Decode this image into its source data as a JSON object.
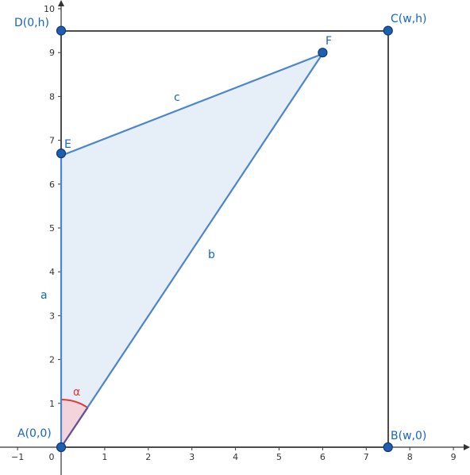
{
  "colors": {
    "axis": "#333333",
    "rect_edge": "#4d4d4d",
    "triangle_edge": "#4a86c8",
    "triangle_fill": "#dde9f6",
    "label": "#1565c0",
    "point_fill": "#1e5fb4",
    "point_stroke": "#103a6e",
    "angle": "#e53935",
    "angle_fill": "#f3d4dc"
  },
  "axes": {
    "x_range": [
      -1,
      9
    ],
    "y_range": [
      0,
      10
    ],
    "x_ticks": [
      "−1",
      "0",
      "1",
      "2",
      "3",
      "4",
      "5",
      "6",
      "7",
      "8",
      "9"
    ],
    "y_ticks": [
      "1",
      "2",
      "3",
      "4",
      "5",
      "6",
      "7",
      "8",
      "9",
      "10"
    ]
  },
  "points": [
    {
      "id": "A",
      "label": "A(0,0)",
      "x": 0,
      "y": 0
    },
    {
      "id": "B",
      "label": "B(w,0)",
      "x": 7.5,
      "y": 0
    },
    {
      "id": "C",
      "label": "C(w,h)",
      "x": 7.5,
      "y": 9.5
    },
    {
      "id": "D",
      "label": "D(0,h)",
      "x": 0,
      "y": 9.5
    },
    {
      "id": "E",
      "label": "E",
      "x": 0,
      "y": 6.7
    },
    {
      "id": "F",
      "label": "F",
      "x": 6,
      "y": 9
    }
  ],
  "segments": [
    {
      "id": "a",
      "label": "a",
      "from": "A",
      "to": "E"
    },
    {
      "id": "b",
      "label": "b",
      "from": "A",
      "to": "F"
    },
    {
      "id": "c",
      "label": "c",
      "from": "E",
      "to": "F"
    }
  ],
  "angle": {
    "label": "α",
    "vertex": "A"
  }
}
